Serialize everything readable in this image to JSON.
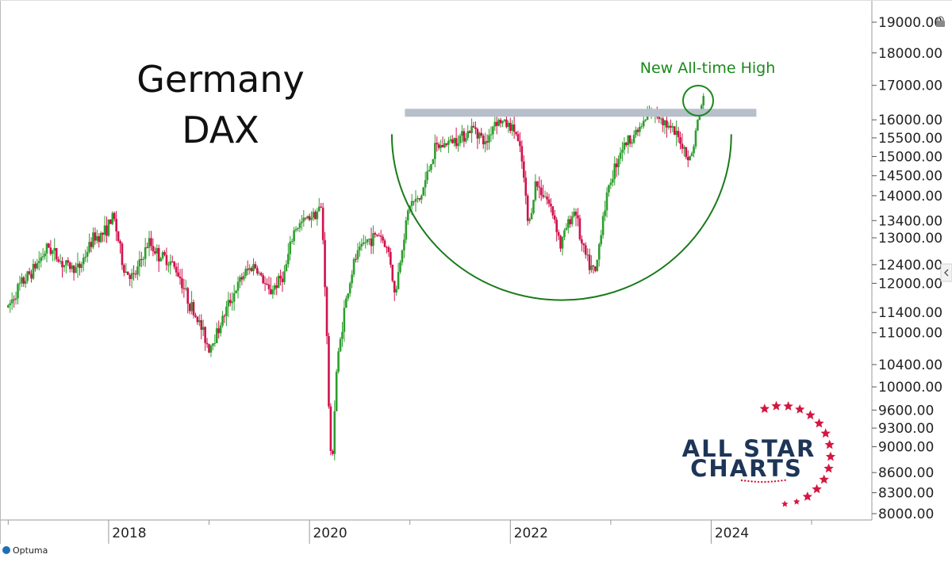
{
  "chart_data": {
    "type": "candlestick",
    "title": "Germany",
    "subtitle": "DAX",
    "xlabel": "",
    "ylabel": "",
    "x_ticks": [
      "2018",
      "2020",
      "2022",
      "2024"
    ],
    "x_range": [
      2016.95,
      2025.6
    ],
    "y_scale": "log",
    "y_ticks": [
      "19000.00",
      "18000.00",
      "17000.00",
      "16000.00",
      "15500.00",
      "15000.00",
      "14500.00",
      "14000.00",
      "13400.00",
      "13000.00",
      "12400.00",
      "12000.00",
      "11400.00",
      "11000.00",
      "10400.00",
      "10000.00",
      "9600.00",
      "9300.00",
      "9000.00",
      "8600.00",
      "8300.00",
      "8000.00"
    ],
    "y_range": [
      7950,
      19350
    ],
    "colors": {
      "up": "#2e9e2e",
      "down": "#d0104c",
      "resistance": "#b7bfcb",
      "annotation": "#1a8a1a"
    },
    "resistance_level": 16200,
    "resistance_range": [
      "2020.95",
      "2024.45"
    ],
    "annotation": {
      "text": "New All-time High",
      "x": 2023.87,
      "y": 16550
    },
    "pattern": "cup (rounding bottom) from 2021 to 2023, bottom near 11700",
    "grid": false,
    "legend": "none",
    "price_path": [
      [
        2017.0,
        11500
      ],
      [
        2017.1,
        11900
      ],
      [
        2017.25,
        12300
      ],
      [
        2017.4,
        12800
      ],
      [
        2017.55,
        12400
      ],
      [
        2017.7,
        12300
      ],
      [
        2017.85,
        13000
      ],
      [
        2017.95,
        13100
      ],
      [
        2018.05,
        13500
      ],
      [
        2018.15,
        12300
      ],
      [
        2018.25,
        12100
      ],
      [
        2018.4,
        12900
      ],
      [
        2018.5,
        12600
      ],
      [
        2018.6,
        12500
      ],
      [
        2018.7,
        12200
      ],
      [
        2018.8,
        11600
      ],
      [
        2018.9,
        11200
      ],
      [
        2019.0,
        10700
      ],
      [
        2019.1,
        11100
      ],
      [
        2019.2,
        11600
      ],
      [
        2019.35,
        12200
      ],
      [
        2019.45,
        12400
      ],
      [
        2019.6,
        11800
      ],
      [
        2019.75,
        12200
      ],
      [
        2019.85,
        13200
      ],
      [
        2020.0,
        13500
      ],
      [
        2020.12,
        13700
      ],
      [
        2020.16,
        11700
      ],
      [
        2020.2,
        9200
      ],
      [
        2020.22,
        8600
      ],
      [
        2020.27,
        10300
      ],
      [
        2020.35,
        11500
      ],
      [
        2020.45,
        12500
      ],
      [
        2020.55,
        12900
      ],
      [
        2020.7,
        13100
      ],
      [
        2020.8,
        12600
      ],
      [
        2020.85,
        11700
      ],
      [
        2020.95,
        13200
      ],
      [
        2021.0,
        13800
      ],
      [
        2021.1,
        13900
      ],
      [
        2021.25,
        15200
      ],
      [
        2021.4,
        15400
      ],
      [
        2021.55,
        15600
      ],
      [
        2021.65,
        15800
      ],
      [
        2021.75,
        15300
      ],
      [
        2021.85,
        16000
      ],
      [
        2021.95,
        15900
      ],
      [
        2022.05,
        15700
      ],
      [
        2022.12,
        14800
      ],
      [
        2022.18,
        13200
      ],
      [
        2022.25,
        14300
      ],
      [
        2022.35,
        14000
      ],
      [
        2022.45,
        13400
      ],
      [
        2022.5,
        12800
      ],
      [
        2022.55,
        13200
      ],
      [
        2022.65,
        13700
      ],
      [
        2022.7,
        12900
      ],
      [
        2022.78,
        12400
      ],
      [
        2022.85,
        12200
      ],
      [
        2022.92,
        13500
      ],
      [
        2023.0,
        14400
      ],
      [
        2023.1,
        15200
      ],
      [
        2023.2,
        15500
      ],
      [
        2023.3,
        15800
      ],
      [
        2023.4,
        16200
      ],
      [
        2023.5,
        16100
      ],
      [
        2023.6,
        15700
      ],
      [
        2023.7,
        15400
      ],
      [
        2023.78,
        14900
      ],
      [
        2023.82,
        15200
      ],
      [
        2023.86,
        15900
      ],
      [
        2023.9,
        16400
      ],
      [
        2023.93,
        16700
      ]
    ]
  },
  "branding": {
    "logo_line1": "ALL STAR",
    "logo_line2": "CHARTS",
    "footer": "Optuma"
  }
}
